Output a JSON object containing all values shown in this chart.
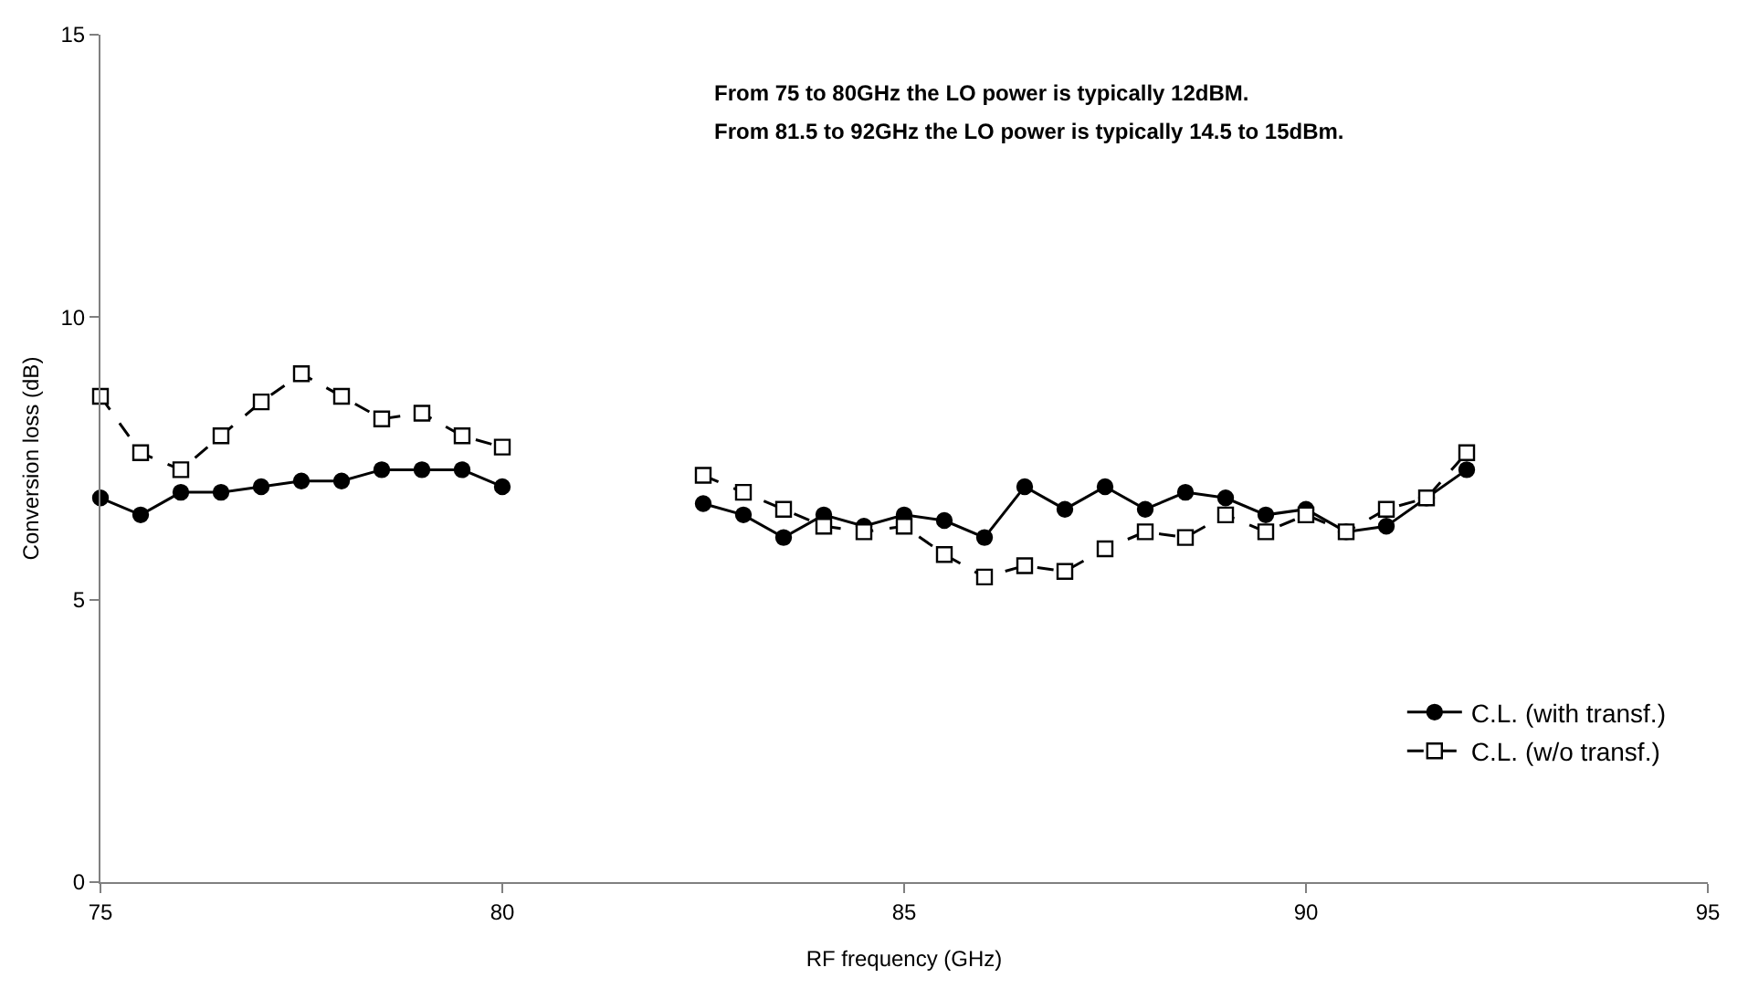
{
  "chart_data": {
    "type": "line",
    "xlabel": "RF frequency (GHz)",
    "ylabel": "Conversion loss (dB)",
    "x": [
      75,
      75.5,
      76,
      76.5,
      77,
      77.5,
      78,
      78.5,
      79,
      79.5,
      80,
      81,
      82.5,
      83,
      83.5,
      84,
      84.5,
      85,
      85.5,
      86,
      86.5,
      87,
      87.5,
      88,
      88.5,
      89,
      89.5,
      90,
      90.5,
      91,
      91.5,
      92
    ],
    "series": [
      {
        "name": "C.L. (with transf.)",
        "color": "#000000",
        "marker": "circle",
        "line_style": "solid",
        "values": [
          6.8,
          6.5,
          6.9,
          6.9,
          7.0,
          7.1,
          7.1,
          7.3,
          7.3,
          7.3,
          7.0,
          null,
          6.7,
          6.5,
          6.1,
          6.5,
          6.3,
          6.5,
          6.4,
          6.1,
          7.0,
          6.6,
          7.0,
          6.6,
          6.9,
          6.8,
          6.5,
          6.6,
          6.2,
          6.3,
          6.8,
          7.3
        ]
      },
      {
        "name": "C.L. (w/o transf.)",
        "color": "#000000",
        "marker": "square",
        "line_style": "dashed",
        "values": [
          8.6,
          7.6,
          7.3,
          7.9,
          8.5,
          9.0,
          8.6,
          8.2,
          8.3,
          7.9,
          7.7,
          null,
          7.2,
          6.9,
          6.6,
          6.3,
          6.2,
          6.3,
          5.8,
          5.4,
          5.6,
          5.5,
          5.9,
          6.2,
          6.1,
          6.5,
          6.2,
          6.5,
          6.2,
          6.6,
          6.8,
          7.6
        ]
      }
    ],
    "xlim": [
      75,
      95
    ],
    "xticks": [
      75,
      80,
      85,
      90,
      95
    ],
    "ylim": [
      0,
      15
    ],
    "yticks": [
      0,
      5,
      10,
      15
    ],
    "grid": false,
    "legend": "bottom right",
    "annotations": [
      "From 75 to 80GHz the LO power is typically 12dBM.",
      "From 81.5 to 92GHz the LO power is typically 14.5 to 15dBm."
    ]
  }
}
